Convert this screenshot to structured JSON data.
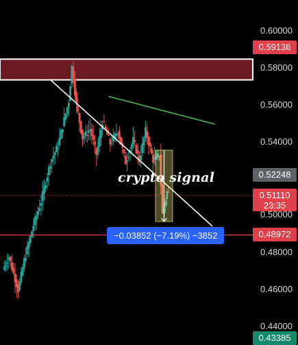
{
  "chart_data": {
    "type": "candlestick",
    "y_axis": {
      "position": "right",
      "ylim": [
        0.4315,
        0.6165
      ],
      "ticks": [
        "0.60000",
        "0.58000",
        "0.56000",
        "0.54000",
        "0.50000",
        "0.48000",
        "0.46000",
        "0.44000"
      ]
    },
    "price_labels": [
      {
        "value": "0.59136",
        "style": "red"
      },
      {
        "value": "0.52248",
        "style": "gray"
      },
      {
        "value": "0.51110",
        "timer": "23:35",
        "style": "red"
      },
      {
        "value": "0.48972",
        "style": "red"
      },
      {
        "value": "0.43385",
        "style": "green"
      }
    ],
    "levels": {
      "resistance_zone": [
        0.5734,
        0.5846
      ],
      "current_price": 0.5111,
      "support_line": 0.48972
    },
    "trendlines": [
      {
        "name": "descending-trendline",
        "color": "#ffffff",
        "from": [
          0.2,
          0.5734
        ],
        "to": [
          0.84,
          0.4945
        ]
      },
      {
        "name": "green-trendline",
        "color": "#4caf50",
        "from": [
          0.43,
          0.5645
        ],
        "to": [
          0.85,
          0.5495
        ]
      }
    ],
    "measure": {
      "label": "−0.03852 (−7.19%) −3852",
      "from": 0.5355,
      "to": 0.497
    },
    "caption": "crypto signal",
    "colors": {
      "up": "#26a69a",
      "down": "#ef5350",
      "zone": "#6b1a22",
      "accent": "#2962ff"
    },
    "grid": false
  }
}
